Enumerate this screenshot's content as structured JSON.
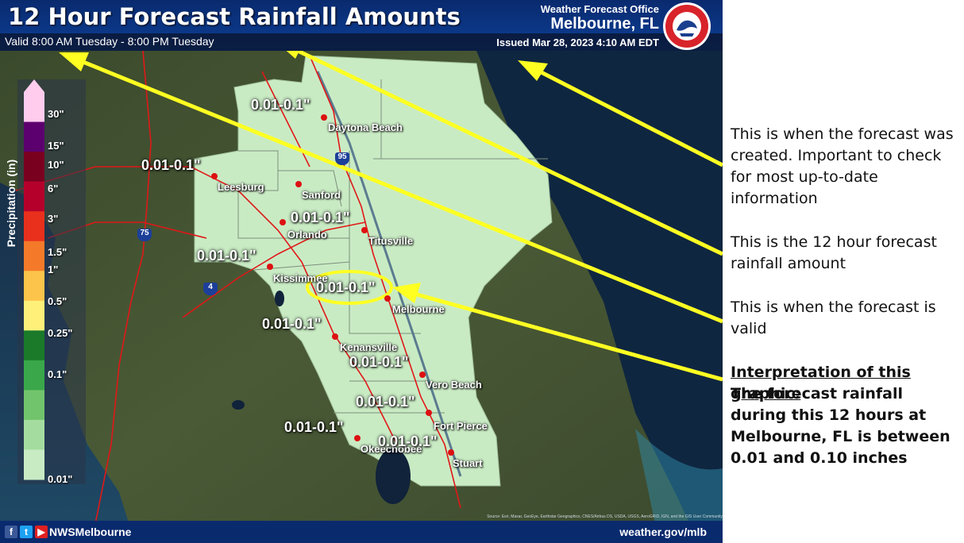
{
  "header": {
    "title": "12 Hour Forecast Rainfall Amounts",
    "valid": "Valid 8:00 AM Tuesday - 8:00 PM Tuesday",
    "office_label": "Weather Forecast Office",
    "office_city": "Melbourne, FL",
    "issued": "Issued Mar 28, 2023 4:10 AM EDT",
    "logo_text": "NATIONAL WEATHER SERVICE"
  },
  "legend": {
    "title": "Precipitation (in)",
    "ticks": [
      "30\"",
      "15\"",
      "10\"",
      "6\"",
      "3\"",
      "1.5\"",
      "1\"",
      "0.5\"",
      "0.25\"",
      "0.1\"",
      "0.01\""
    ],
    "colors": [
      "#ffccee",
      "#5b006e",
      "#7a0020",
      "#b5002c",
      "#e8301c",
      "#f47a2a",
      "#fcc44a",
      "#fff07a",
      "#1a7a2a",
      "#3aa84a",
      "#72c46c",
      "#a4dca0",
      "#c9ebc4"
    ]
  },
  "map": {
    "cities": [
      "Daytona Beach",
      "Leesburg",
      "Sanford",
      "Orlando",
      "Titusville",
      "Kissimmee",
      "Melbourne",
      "Kenansville",
      "Vero Beach",
      "Fort Pierce",
      "Okeechobee",
      "Stuart"
    ],
    "amounts": [
      "0.01-0.1\"",
      "0.01-0.1\"",
      "0.01-0.1\"",
      "0.01-0.1\"",
      "0.01-0.1\"",
      "0.01-0.1\"",
      "0.01-0.1\"",
      "0.01-0.1\"",
      "0.01-0.1\"",
      "0.01-0.1\""
    ],
    "interstates": [
      "95",
      "75",
      "4"
    ],
    "forecast_area_color": "#c9ebc4",
    "highlight_color": "#ffff22",
    "source_text": "Source: Esri, Maxar, GeoEye, Earthstar Geographics, CNES/Airbus DS, USDA, USGS, AeroGRID, IGN, and the GIS User Community"
  },
  "footer": {
    "handle": "NWSMelbourne",
    "url": "weather.gov/mlb"
  },
  "annotations": {
    "issued_note": "This is when the forecast was created. Important to check for most up-to-date information",
    "amount_note": "This is the 12 hour forecast rainfall amount",
    "valid_note": "This is when the forecast is valid",
    "interp_heading": "Interpretation of this graphic:",
    "interp_body": "The forecast rainfall during this 12 hours at Melbourne, FL is between 0.01 and 0.10 inches"
  }
}
